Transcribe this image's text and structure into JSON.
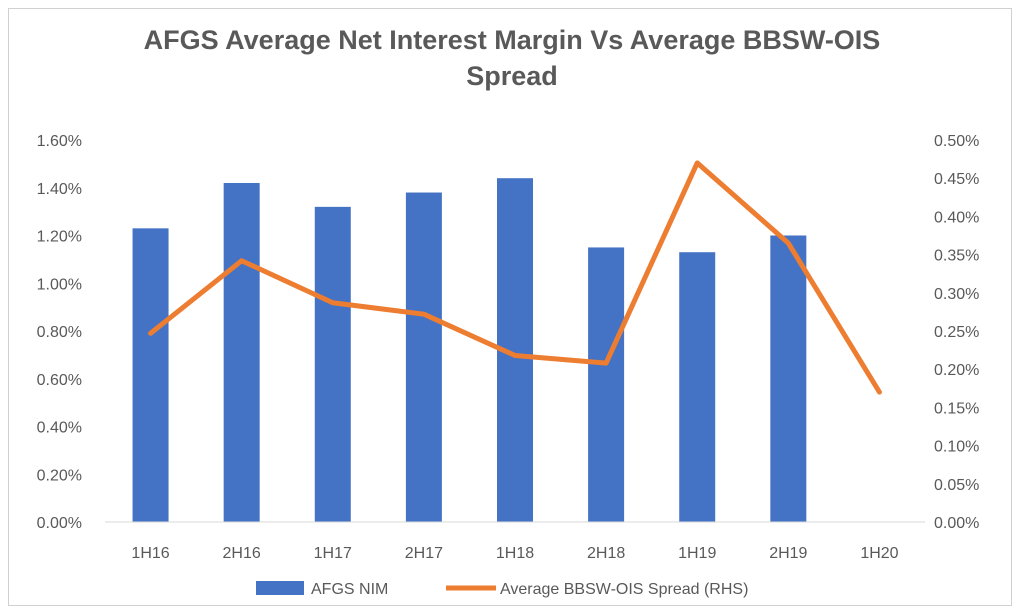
{
  "chart_data": {
    "type": "bar",
    "title": "AFGS Average Net Interest Margin Vs Average BBSW-OIS\nSpread",
    "categories": [
      "1H16",
      "2H16",
      "1H17",
      "2H17",
      "1H18",
      "2H18",
      "1H19",
      "2H19",
      "1H20"
    ],
    "series": [
      {
        "name": "AFGS NIM",
        "type": "bar",
        "axis": "left",
        "color": "#4472C4",
        "values": [
          1.23,
          1.42,
          1.32,
          1.38,
          1.44,
          1.15,
          1.13,
          1.2,
          null
        ]
      },
      {
        "name": "Average BBSW-OIS Spread (RHS)",
        "type": "line",
        "axis": "right",
        "color": "#ED7D31",
        "values": [
          0.247,
          0.342,
          0.287,
          0.272,
          0.218,
          0.208,
          0.47,
          0.365,
          0.17
        ]
      }
    ],
    "yleft": {
      "min": 0,
      "max": 1.6,
      "step": 0.2,
      "decimals": 2,
      "tick_labels": [
        "0.00%",
        "0.20%",
        "0.40%",
        "0.60%",
        "0.80%",
        "1.00%",
        "1.20%",
        "1.40%",
        "1.60%"
      ]
    },
    "yright": {
      "min": 0,
      "max": 0.5,
      "step": 0.05,
      "decimals": 2,
      "tick_labels": [
        "0.00%",
        "0.05%",
        "0.10%",
        "0.15%",
        "0.20%",
        "0.25%",
        "0.30%",
        "0.35%",
        "0.40%",
        "0.45%",
        "0.50%"
      ]
    },
    "legend": "bottom",
    "grid": false
  }
}
